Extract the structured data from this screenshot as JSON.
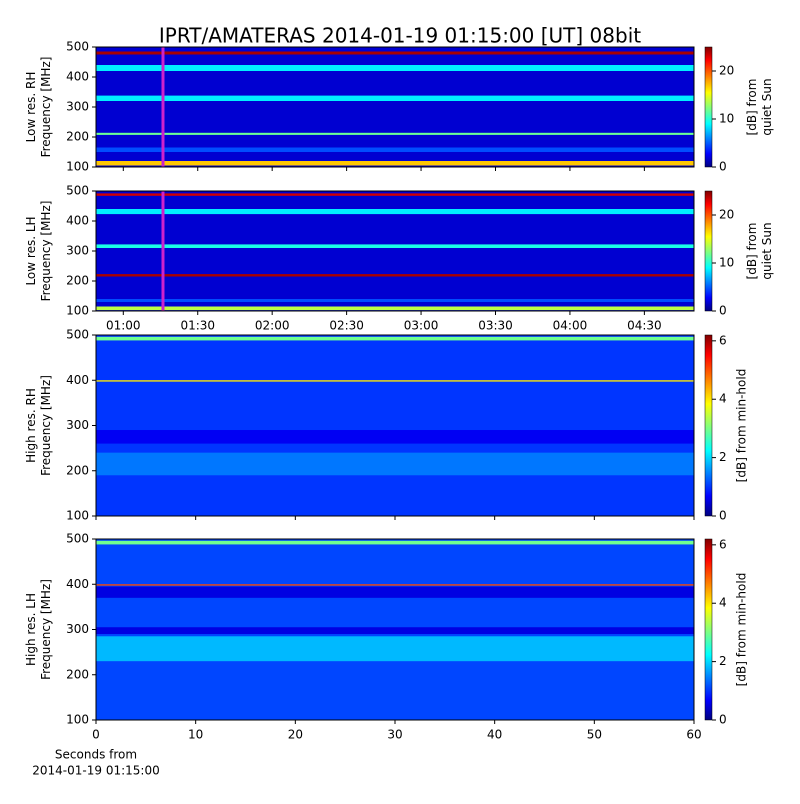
{
  "title": "IPRT/AMATERAS 2014-01-19 01:15:00 [UT]   08bit",
  "chart_data": [
    {
      "type": "heatmap",
      "ylabel": [
        "Low res. RH",
        "Frequency [MHz]"
      ],
      "ylim": [
        100,
        500
      ],
      "yticks": [
        100,
        200,
        300,
        400,
        500
      ],
      "colormap": "jet",
      "zlim": [
        0,
        25
      ],
      "zticks": [
        0,
        10,
        20
      ],
      "colorbar_label": [
        "[dB] from",
        "quiet Sun"
      ],
      "background": 2,
      "bands": [
        {
          "ylim": [
            105,
            120
          ],
          "value": 17
        },
        {
          "ylim": [
            150,
            165
          ],
          "value": 5
        },
        {
          "ylim": [
            207,
            214
          ],
          "value": 12
        },
        {
          "ylim": [
            320,
            338
          ],
          "value": 9
        },
        {
          "ylim": [
            420,
            440
          ],
          "value": 9
        },
        {
          "ylim": [
            475,
            485
          ],
          "value": 24
        }
      ],
      "marker": {
        "x": 76,
        "color": "#cc22cc"
      }
    },
    {
      "type": "heatmap",
      "ylabel": [
        "Low res. LH",
        "Frequency [MHz]"
      ],
      "ylim": [
        100,
        500
      ],
      "yticks": [
        100,
        200,
        300,
        400,
        500
      ],
      "colormap": "jet",
      "zlim": [
        0,
        25
      ],
      "zticks": [
        0,
        10,
        20
      ],
      "colorbar_label": [
        "[dB] from",
        "quiet Sun"
      ],
      "background": 2,
      "bands": [
        {
          "ylim": [
            103,
            115
          ],
          "value": 14
        },
        {
          "ylim": [
            130,
            140
          ],
          "value": 5
        },
        {
          "ylim": [
            215,
            223
          ],
          "value": 24
        },
        {
          "ylim": [
            310,
            322
          ],
          "value": 10
        },
        {
          "ylim": [
            423,
            440
          ],
          "value": 9
        },
        {
          "ylim": [
            484,
            492
          ],
          "value": 23
        }
      ],
      "marker": {
        "x": 76,
        "color": "#cc22cc"
      },
      "xlim": [
        49,
        290
      ],
      "xticks": [
        {
          "value": 60,
          "label": "01:00"
        },
        {
          "value": 90,
          "label": "01:30"
        },
        {
          "value": 120,
          "label": "02:00"
        },
        {
          "value": 150,
          "label": "02:30"
        },
        {
          "value": 180,
          "label": "03:00"
        },
        {
          "value": 210,
          "label": "03:30"
        },
        {
          "value": 240,
          "label": "04:00"
        },
        {
          "value": 270,
          "label": "04:30"
        }
      ]
    },
    {
      "type": "heatmap",
      "ylabel": [
        "High res. RH",
        "Frequency [MHz]"
      ],
      "ylim": [
        100,
        500
      ],
      "yticks": [
        100,
        200,
        300,
        400,
        500
      ],
      "colormap": "jet",
      "zlim": [
        0,
        6.2
      ],
      "zticks": [
        0,
        2,
        4,
        6
      ],
      "colorbar_label": [
        "[dB] from min-hold"
      ],
      "background": 1.1,
      "bands": [
        {
          "ylim": [
            190,
            240
          ],
          "value": 1.5
        },
        {
          "ylim": [
            260,
            290
          ],
          "value": 0.7
        },
        {
          "ylim": [
            397,
            400
          ],
          "value": 4
        },
        {
          "ylim": [
            488,
            496
          ],
          "value": 3
        }
      ]
    },
    {
      "type": "heatmap",
      "ylabel": [
        "High res. LH",
        "Frequency [MHz]"
      ],
      "ylim": [
        100,
        500
      ],
      "yticks": [
        100,
        200,
        300,
        400,
        500
      ],
      "colormap": "jet",
      "zlim": [
        0,
        6.2
      ],
      "zticks": [
        0,
        2,
        4,
        6
      ],
      "colorbar_label": [
        "[dB] from min-hold"
      ],
      "background": 1.2,
      "bands": [
        {
          "ylim": [
            230,
            285
          ],
          "value": 1.9
        },
        {
          "ylim": [
            290,
            305
          ],
          "value": 0.6
        },
        {
          "ylim": [
            370,
            395
          ],
          "value": 0.6
        },
        {
          "ylim": [
            397,
            400
          ],
          "value": 5
        },
        {
          "ylim": [
            488,
            496
          ],
          "value": 3
        }
      ],
      "xlim": [
        0,
        60
      ],
      "xticks": [
        0,
        10,
        20,
        30,
        40,
        50,
        60
      ],
      "xlabel": [
        "Seconds from",
        "2014-01-19 01:15:00"
      ]
    }
  ]
}
